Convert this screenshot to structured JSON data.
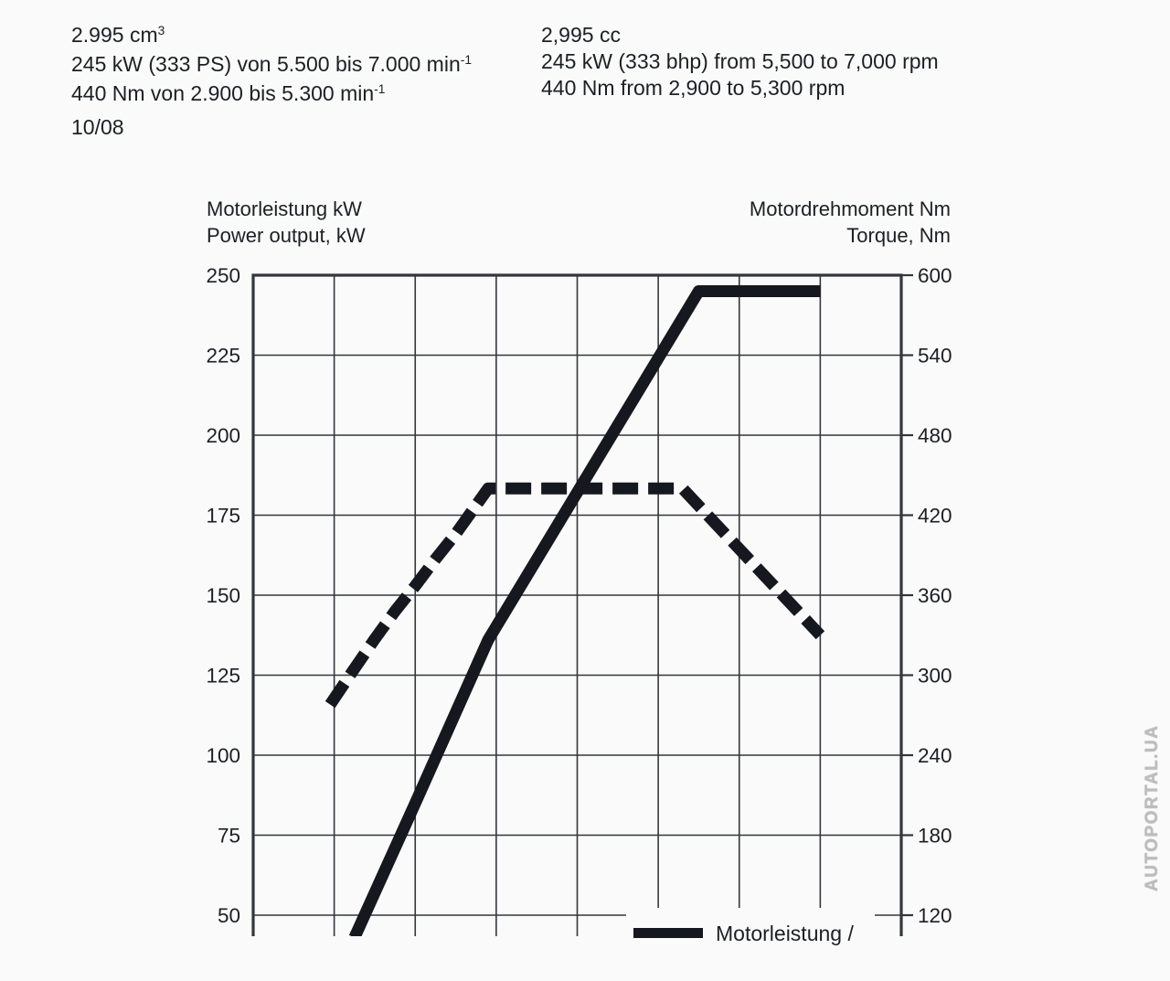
{
  "page": {
    "background": "#fafafa",
    "ink": "#1c1f24",
    "grid_color": "#33363c"
  },
  "header": {
    "german": {
      "line1": {
        "text": "2.995 cm",
        "sup": "3"
      },
      "line2": {
        "text": "245 kW (333 PS) von 5.500 bis 7.000 min",
        "sup": "-1"
      },
      "line3": {
        "text": "440 Nm von 2.900 bis 5.300 min",
        "sup": "-1"
      }
    },
    "english": {
      "line1": "2,995 cc",
      "line2": "245 kW (333 bhp) from 5,500 to 7,000 rpm",
      "line3": "440 Nm from 2,900 to 5,300 rpm"
    },
    "date": "10/08"
  },
  "axes": {
    "left_title_line1": "Motorleistung kW",
    "left_title_line2": "Power output, kW",
    "right_title_line1": "Motordrehmoment Nm",
    "right_title_line2": "Torque, Nm"
  },
  "legend": {
    "power_label": "Motorleistung /"
  },
  "watermark": "AUTOPORTAL.UA",
  "chart_data": {
    "type": "line",
    "title": "Engine power and torque vs engine speed",
    "x_axis": {
      "unit": "rpm",
      "min": 0,
      "max": 8000,
      "gridline_step": 1000,
      "tick_labels_visible": false
    },
    "y_left": {
      "label": "Motorleistung kW / Power output, kW",
      "unit": "kW",
      "ticks": [
        250,
        225,
        200,
        175,
        150,
        125,
        100,
        75,
        50
      ],
      "step": 25
    },
    "y_right": {
      "label": "Motordrehmoment Nm / Torque, Nm",
      "unit": "Nm",
      "ticks": [
        600,
        540,
        480,
        420,
        360,
        300,
        240,
        180,
        120
      ],
      "step": 60
    },
    "grid": true,
    "series": [
      {
        "name": "Motorleistung / Power output",
        "style": "solid",
        "axis": "left",
        "points_rpm_value": [
          [
            1250,
            43
          ],
          [
            2000,
            85
          ],
          [
            2900,
            136
          ],
          [
            5500,
            245
          ],
          [
            7000,
            245
          ]
        ]
      },
      {
        "name": "Motordrehmoment / Torque",
        "style": "dashed",
        "axis": "right",
        "points_rpm_value": [
          [
            950,
            278
          ],
          [
            1250,
            305
          ],
          [
            1500,
            327
          ],
          [
            1750,
            348
          ],
          [
            2000,
            367
          ],
          [
            2250,
            387
          ],
          [
            2500,
            406
          ],
          [
            2700,
            423
          ],
          [
            2900,
            440
          ],
          [
            5300,
            440
          ],
          [
            7000,
            330
          ]
        ]
      }
    ],
    "peak_power": "245 kW (333 PS) from 5,500 to 7,000 rpm",
    "peak_torque": "440 Nm from 2,900 to 5,300 rpm"
  }
}
